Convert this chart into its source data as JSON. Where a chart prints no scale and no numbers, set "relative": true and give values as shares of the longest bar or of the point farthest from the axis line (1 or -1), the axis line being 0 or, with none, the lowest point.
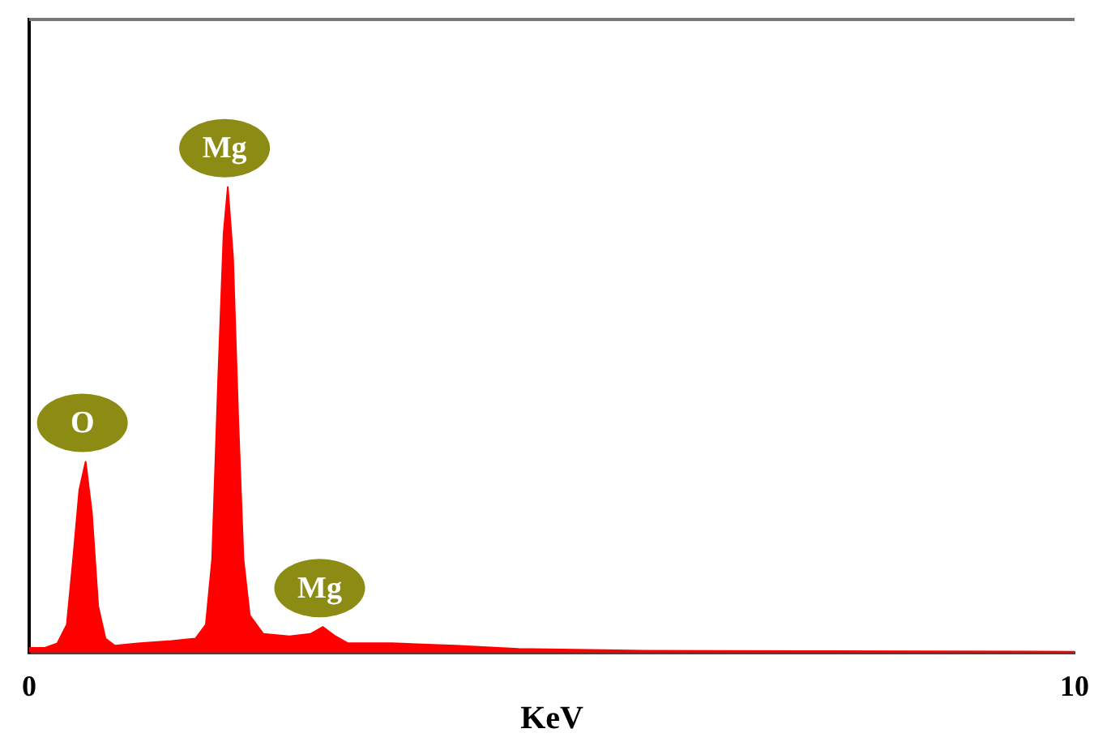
{
  "chart_data": {
    "type": "area",
    "xlabel": "KeV",
    "relative": true,
    "xlim": [
      0,
      10
    ],
    "xticks": [
      0,
      10
    ],
    "grid": false,
    "legend": false,
    "marker": "none",
    "series": [
      {
        "color": "#ff0000",
        "x": [
          0,
          0.15,
          0.27,
          0.36,
          0.42,
          0.48,
          0.54,
          0.6,
          0.66,
          0.73,
          0.82,
          1.06,
          1.36,
          1.59,
          1.69,
          1.75,
          1.81,
          1.86,
          1.9,
          1.95,
          2.0,
          2.05,
          2.11,
          2.24,
          2.49,
          2.69,
          2.81,
          2.93,
          3.05,
          3.47,
          4.08,
          4.68,
          5.89,
          7.4,
          10
        ],
        "values": [
          0.01,
          0.01,
          0.02,
          0.06,
          0.2,
          0.35,
          0.41,
          0.3,
          0.1,
          0.03,
          0.015,
          0.02,
          0.025,
          0.03,
          0.06,
          0.2,
          0.6,
          0.9,
          1.0,
          0.85,
          0.5,
          0.2,
          0.08,
          0.04,
          0.035,
          0.04,
          0.055,
          0.035,
          0.02,
          0.02,
          0.015,
          0.008,
          0.004,
          0.003,
          0.002
        ]
      }
    ],
    "annotations": [
      {
        "text": "O",
        "x": 0.54,
        "y": 0.41
      },
      {
        "text": "Mg",
        "x": 1.9,
        "y": 1.0
      },
      {
        "text": "Mg",
        "x": 2.81,
        "y": 0.055
      }
    ]
  }
}
